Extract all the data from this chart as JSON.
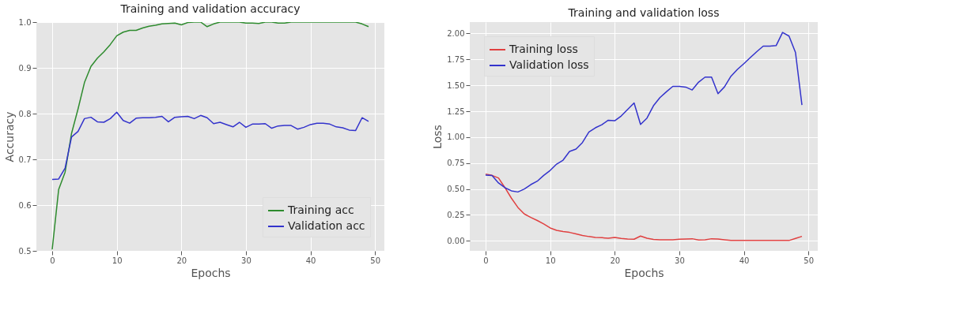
{
  "chart_data": [
    {
      "type": "line",
      "title": "Training and validation accuracy",
      "xlabel": "Epochs",
      "ylabel": "Accuracy",
      "x": [
        0,
        1,
        2,
        3,
        4,
        5,
        6,
        7,
        8,
        9,
        10,
        11,
        12,
        13,
        14,
        15,
        16,
        17,
        18,
        19,
        20,
        21,
        22,
        23,
        24,
        25,
        26,
        27,
        28,
        29,
        30,
        31,
        32,
        33,
        34,
        35,
        36,
        37,
        38,
        39,
        40,
        41,
        42,
        43,
        44,
        45,
        46,
        47,
        48,
        49
      ],
      "series": [
        {
          "name": "Training acc",
          "color": "#2e8b2e",
          "values": [
            0.503,
            0.634,
            0.672,
            0.757,
            0.81,
            0.868,
            0.903,
            0.921,
            0.935,
            0.951,
            0.97,
            0.978,
            0.982,
            0.982,
            0.987,
            0.991,
            0.993,
            0.996,
            0.997,
            0.998,
            0.994,
            0.999,
            1.0,
            1.0,
            0.99,
            0.996,
            1.0,
            1.0,
            1.0,
            1.0,
            0.998,
            0.998,
            0.997,
            1.0,
            1.0,
            0.998,
            0.998,
            1.0,
            1.0,
            1.0,
            1.0,
            1.0,
            1.0,
            1.0,
            1.0,
            1.0,
            1.0,
            1.0,
            0.996,
            0.99
          ]
        },
        {
          "name": "Validation acc",
          "color": "#3333cc",
          "values": [
            0.656,
            0.657,
            0.681,
            0.749,
            0.761,
            0.789,
            0.792,
            0.782,
            0.781,
            0.789,
            0.803,
            0.785,
            0.779,
            0.79,
            0.791,
            0.791,
            0.792,
            0.794,
            0.782,
            0.792,
            0.793,
            0.794,
            0.789,
            0.796,
            0.791,
            0.778,
            0.781,
            0.776,
            0.771,
            0.781,
            0.77,
            0.777,
            0.777,
            0.778,
            0.768,
            0.773,
            0.774,
            0.774,
            0.766,
            0.77,
            0.776,
            0.779,
            0.779,
            0.777,
            0.771,
            0.769,
            0.764,
            0.763,
            0.791,
            0.783
          ]
        }
      ],
      "xlim": [
        -2.45,
        51.45
      ],
      "xticks": [
        0,
        10,
        20,
        30,
        40,
        50
      ],
      "ylim": [
        0.5,
        1.0
      ],
      "yticks": [
        {
          "value": 0.5,
          "label": "0.5"
        },
        {
          "value": 0.6,
          "label": "0.6"
        },
        {
          "value": 0.7,
          "label": "0.7"
        },
        {
          "value": 0.8,
          "label": "0.8"
        },
        {
          "value": 0.9,
          "label": "0.9"
        },
        {
          "value": 1.0,
          "label": "1.0"
        }
      ],
      "grid": true,
      "legend": "bottom right",
      "line_style": "solid",
      "marker": "none"
    },
    {
      "type": "line",
      "title": "Training and validation loss",
      "xlabel": "Epochs",
      "ylabel": "Loss",
      "x": [
        0,
        1,
        2,
        3,
        4,
        5,
        6,
        7,
        8,
        9,
        10,
        11,
        12,
        13,
        14,
        15,
        16,
        17,
        18,
        19,
        20,
        21,
        22,
        23,
        24,
        25,
        26,
        27,
        28,
        29,
        30,
        31,
        32,
        33,
        34,
        35,
        36,
        37,
        38,
        39,
        40,
        41,
        42,
        43,
        44,
        45,
        46,
        47,
        48,
        49
      ],
      "series": [
        {
          "name": "Training loss",
          "color": "#e04040",
          "values": [
            0.644,
            0.631,
            0.606,
            0.512,
            0.411,
            0.322,
            0.259,
            0.226,
            0.196,
            0.162,
            0.124,
            0.101,
            0.089,
            0.081,
            0.066,
            0.051,
            0.041,
            0.033,
            0.03,
            0.025,
            0.033,
            0.023,
            0.018,
            0.015,
            0.046,
            0.025,
            0.013,
            0.01,
            0.01,
            0.01,
            0.015,
            0.018,
            0.02,
            0.008,
            0.01,
            0.02,
            0.018,
            0.01,
            0.003,
            0.003,
            0.003,
            0.003,
            0.003,
            0.003,
            0.003,
            0.003,
            0.003,
            0.003,
            0.023,
            0.043
          ]
        },
        {
          "name": "Validation loss",
          "color": "#3333cc",
          "values": [
            0.634,
            0.629,
            0.558,
            0.512,
            0.482,
            0.471,
            0.499,
            0.542,
            0.575,
            0.631,
            0.679,
            0.74,
            0.778,
            0.862,
            0.885,
            0.948,
            1.049,
            1.09,
            1.12,
            1.163,
            1.158,
            1.204,
            1.267,
            1.33,
            1.123,
            1.184,
            1.303,
            1.381,
            1.437,
            1.49,
            1.49,
            1.483,
            1.455,
            1.531,
            1.579,
            1.579,
            1.419,
            1.485,
            1.587,
            1.653,
            1.709,
            1.767,
            1.825,
            1.878,
            1.878,
            1.883,
            2.01,
            1.975,
            1.817,
            1.31
          ]
        }
      ],
      "xlim": [
        -2.45,
        51.45
      ],
      "xticks": [
        0,
        10,
        20,
        30,
        40,
        50
      ],
      "ylim": [
        -0.097,
        2.11
      ],
      "yticks": [
        {
          "value": 0.0,
          "label": "0.00"
        },
        {
          "value": 0.25,
          "label": "0.25"
        },
        {
          "value": 0.5,
          "label": "0.50"
        },
        {
          "value": 0.75,
          "label": "0.75"
        },
        {
          "value": 1.0,
          "label": "1.00"
        },
        {
          "value": 1.25,
          "label": "1.25"
        },
        {
          "value": 1.5,
          "label": "1.50"
        },
        {
          "value": 1.75,
          "label": "1.75"
        },
        {
          "value": 2.0,
          "label": "2.00"
        }
      ],
      "grid": true,
      "legend": "top left",
      "line_style": "solid",
      "marker": "none"
    }
  ]
}
